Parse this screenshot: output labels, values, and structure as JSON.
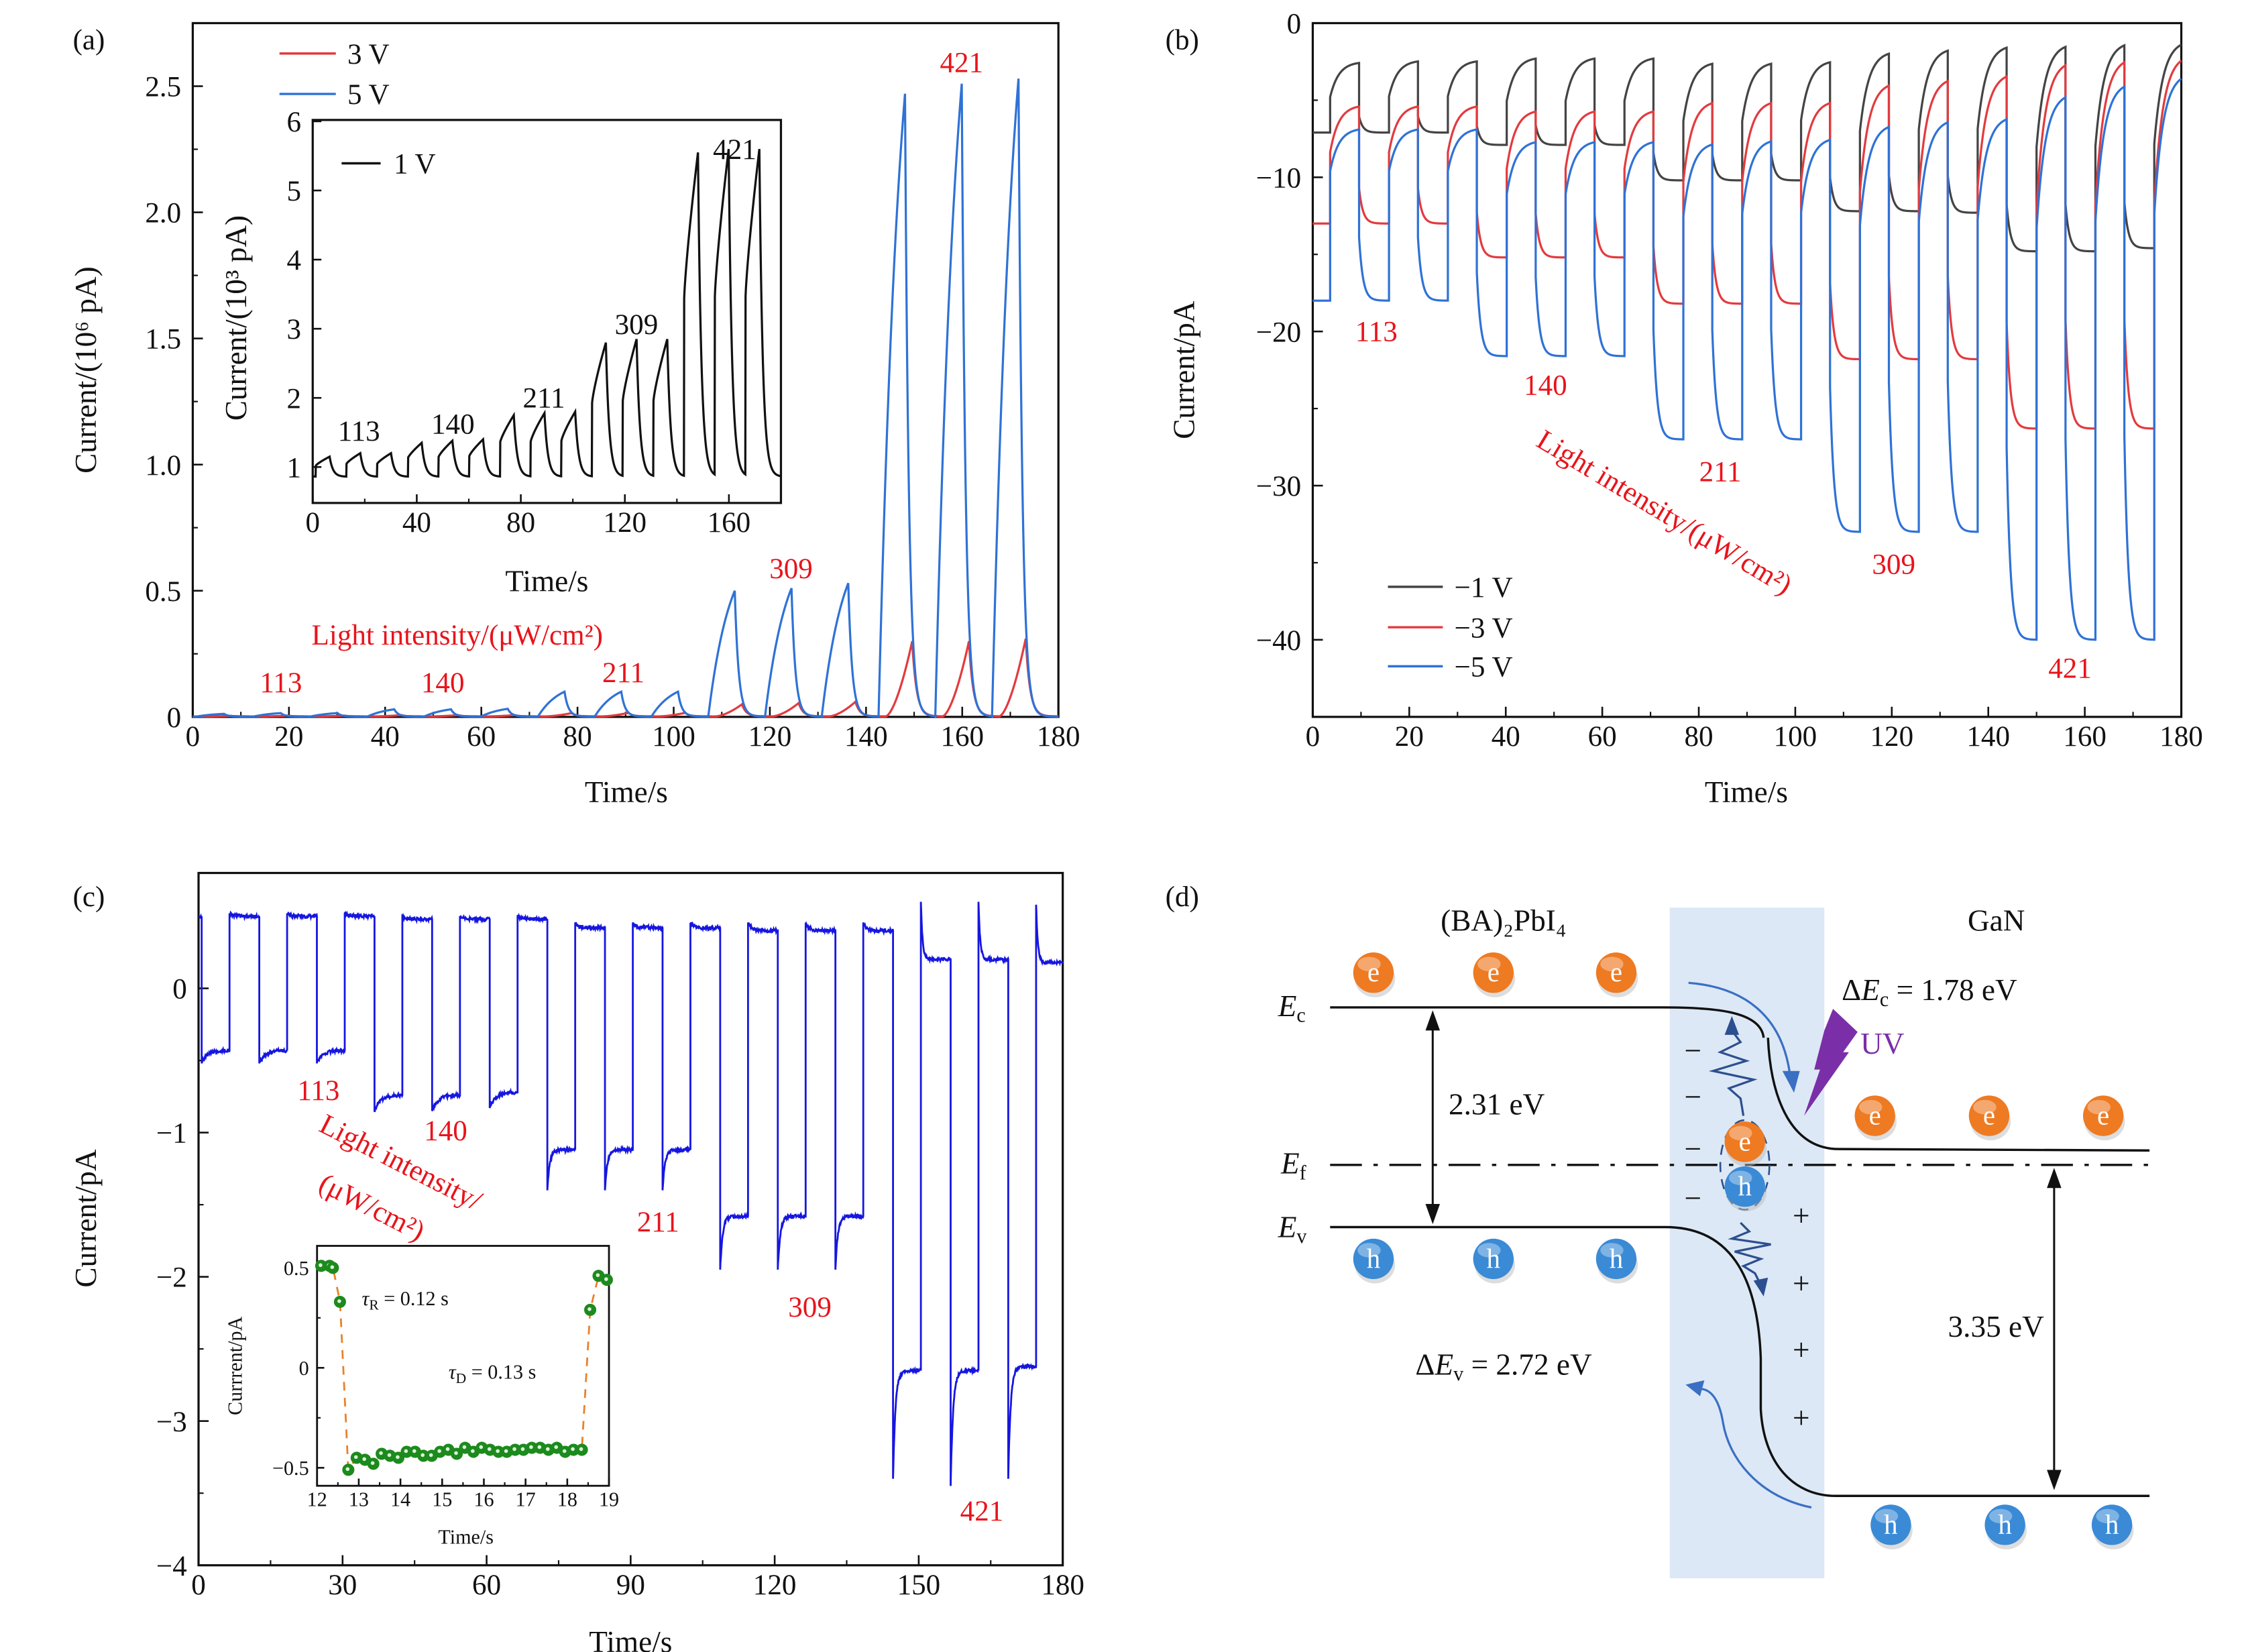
{
  "figure_labels": {
    "a": "(a)",
    "b": "(b)",
    "c": "(c)",
    "d": "(d)"
  },
  "chart_data": [
    {
      "panel": "a",
      "type": "line",
      "xlabel": "Time/s",
      "ylabel": "Current/(10⁶ pA)",
      "xlim": [
        0,
        180
      ],
      "ylim": [
        0,
        2.75
      ],
      "xticks": [
        0,
        20,
        40,
        60,
        80,
        100,
        120,
        140,
        160,
        180
      ],
      "xtick_labels": [
        "0",
        "20",
        "40",
        "60",
        "80",
        "100",
        "120",
        "140",
        "160",
        "180"
      ],
      "yticks": [
        0,
        0.5,
        1.0,
        1.5,
        2.0,
        2.5
      ],
      "ytick_labels": [
        "0",
        "0.5",
        "1.0",
        "1.5",
        "2.0",
        "2.5"
      ],
      "grid": false,
      "legend": "top-left",
      "light_period_s": 11.8,
      "pulse_duration_s": 5.5,
      "series": [
        {
          "name": "3 V",
          "color": "#e23b3f",
          "first_on_s": 2.5,
          "baseline": 0.002,
          "peak_values": [
            0.004,
            0.005,
            0.005,
            0.007,
            0.007,
            0.007,
            0.015,
            0.016,
            0.016,
            0.05,
            0.055,
            0.06,
            0.3,
            0.3,
            0.31
          ]
        },
        {
          "name": "5 V",
          "color": "#2f72d6",
          "first_on_s": 1.0,
          "baseline": 0.002,
          "peak_values": [
            0.012,
            0.015,
            0.015,
            0.03,
            0.03,
            0.032,
            0.1,
            0.1,
            0.1,
            0.5,
            0.51,
            0.53,
            2.47,
            2.51,
            2.53
          ]
        }
      ],
      "annotations": {
        "title": "Light intensity/(μW/cm²)",
        "levels": [
          "113",
          "140",
          "211",
          "309",
          "421"
        ]
      }
    },
    {
      "panel": "a-inset",
      "type": "line",
      "xlabel": "Time/s",
      "ylabel": "Current/(10³ pA)",
      "xlim": [
        0,
        180
      ],
      "ylim": [
        0.48,
        6.02
      ],
      "xticks": [
        0,
        40,
        80,
        120,
        160
      ],
      "xtick_labels": [
        "0",
        "40",
        "80",
        "120",
        "160"
      ],
      "yticks": [
        1,
        2,
        3,
        4,
        5,
        6
      ],
      "ytick_labels": [
        "1",
        "2",
        "3",
        "4",
        "5",
        "6"
      ],
      "legend": "top-left",
      "light_period_s": 11.8,
      "pulse_duration_s": 5.3,
      "series": [
        {
          "name": "1 V",
          "color": "#111111",
          "first_on_s": 1.2,
          "baseline": 0.86,
          "peak_values": [
            1.15,
            1.2,
            1.2,
            1.35,
            1.38,
            1.4,
            1.75,
            1.78,
            1.8,
            2.8,
            2.85,
            2.85,
            5.55,
            5.6,
            5.6
          ]
        }
      ],
      "annotations": {
        "levels": [
          "113",
          "140",
          "211",
          "309",
          "421"
        ]
      }
    },
    {
      "panel": "b",
      "type": "line",
      "xlabel": "Time/s",
      "ylabel": "Current/pA",
      "xlim": [
        0,
        180
      ],
      "ylim": [
        -45,
        0
      ],
      "xticks": [
        0,
        20,
        40,
        60,
        80,
        100,
        120,
        140,
        160,
        180
      ],
      "xtick_labels": [
        "0",
        "20",
        "40",
        "60",
        "80",
        "100",
        "120",
        "140",
        "160",
        "180"
      ],
      "yticks": [
        0,
        -10,
        -20,
        -30,
        -40
      ],
      "ytick_labels": [
        "0",
        "−10",
        "−20",
        "−30",
        "−40"
      ],
      "grid": false,
      "legend": "bottom-left",
      "light_period_s": 12.2,
      "light_off_first_s": 3.6,
      "light_on_first_s": 9.6,
      "series": [
        {
          "name": "−1 V",
          "color": "#444444",
          "dark_levels": [
            -2.5,
            -2.4,
            -2.4,
            -2.2,
            -2.2,
            -2.2,
            -2.5,
            -2.5,
            -2.4,
            -1.8,
            -1.6,
            -1.4,
            -1.3,
            -1.2,
            -1.1
          ],
          "light_levels": [
            -7.1,
            -7.1,
            -7.1,
            -7.9,
            -7.9,
            -7.9,
            -10.2,
            -10.2,
            -10.2,
            -12.2,
            -12.2,
            -12.3,
            -14.8,
            -14.8,
            -14.6
          ]
        },
        {
          "name": "−3 V",
          "color": "#e23b3f",
          "dark_levels": [
            -5.3,
            -5.3,
            -5.3,
            -5.6,
            -5.6,
            -5.6,
            -5.0,
            -5.0,
            -5.0,
            -3.8,
            -3.5,
            -3.2,
            -2.4,
            -2.2,
            -2.0
          ],
          "light_levels": [
            -13,
            -13,
            -13,
            -15.2,
            -15.2,
            -15.2,
            -18.2,
            -18.2,
            -18.2,
            -21.8,
            -21.8,
            -21.8,
            -26.3,
            -26.3,
            -26.3
          ]
        },
        {
          "name": "−5 V",
          "color": "#2f72d6",
          "dark_levels": [
            -6.8,
            -6.8,
            -6.8,
            -7.6,
            -7.6,
            -7.6,
            -7.7,
            -7.5,
            -7.4,
            -6.5,
            -6.2,
            -6.0,
            -4.5,
            -3.8,
            -3.2
          ],
          "light_levels": [
            -18,
            -18,
            -18,
            -21.6,
            -21.6,
            -21.6,
            -27,
            -27,
            -27,
            -33,
            -33,
            -33,
            -40,
            -40,
            -40
          ]
        }
      ],
      "annotations": {
        "title": "Light intensity/(μW/cm²)",
        "levels": [
          "113",
          "140",
          "211",
          "309",
          "421"
        ]
      }
    },
    {
      "panel": "c",
      "type": "line",
      "xlabel": "Time/s",
      "ylabel": "Current/pA",
      "xlim": [
        0,
        180
      ],
      "ylim": [
        -4,
        0.8
      ],
      "xticks": [
        0,
        30,
        60,
        90,
        120,
        150,
        180
      ],
      "xtick_labels": [
        "0",
        "30",
        "60",
        "90",
        "120",
        "150",
        "180"
      ],
      "yticks": [
        0,
        -1,
        -2,
        -3,
        -4
      ],
      "ytick_labels": [
        "0",
        "−1",
        "−2",
        "−3",
        "−4"
      ],
      "grid": false,
      "light_period_s": 12,
      "light_on_first_s": 0.65,
      "light_off_first_s": 6.45,
      "series": [
        {
          "color": "#1616e0",
          "light_levels_spike_settle": [
            [
              -0.52,
              -0.43
            ],
            [
              -0.52,
              -0.43
            ],
            [
              -0.52,
              -0.43
            ],
            [
              -0.85,
              -0.74
            ],
            [
              -0.85,
              -0.74
            ],
            [
              -0.83,
              -0.72
            ],
            [
              -1.4,
              -1.12
            ],
            [
              -1.4,
              -1.12
            ],
            [
              -1.4,
              -1.12
            ],
            [
              -1.95,
              -1.58
            ],
            [
              -1.95,
              -1.58
            ],
            [
              -1.95,
              -1.58
            ],
            [
              -3.4,
              -2.65
            ],
            [
              -3.45,
              -2.65
            ],
            [
              -3.4,
              -2.62
            ]
          ],
          "dark_levels_spike_settle": [
            [
              0.52,
              0.5
            ],
            [
              0.52,
              0.5
            ],
            [
              0.52,
              0.5
            ],
            [
              0.5,
              0.48
            ],
            [
              0.5,
              0.48
            ],
            [
              0.5,
              0.48
            ],
            [
              0.45,
              0.42
            ],
            [
              0.45,
              0.42
            ],
            [
              0.45,
              0.42
            ],
            [
              0.45,
              0.4
            ],
            [
              0.45,
              0.4
            ],
            [
              0.45,
              0.4
            ],
            [
              0.6,
              0.2
            ],
            [
              0.6,
              0.2
            ],
            [
              0.58,
              0.18
            ]
          ]
        }
      ],
      "annotations": {
        "title_line1": "Light intensity/",
        "title_line2": "(μW/cm²)",
        "levels": [
          "113",
          "140",
          "211",
          "309",
          "421"
        ]
      }
    },
    {
      "panel": "c-inset",
      "type": "scatter",
      "xlabel": "Time/s",
      "ylabel": "Currrent/pA",
      "xlim": [
        12,
        19
      ],
      "ylim": [
        -0.59,
        0.61
      ],
      "xticks": [
        12,
        13,
        14,
        15,
        16,
        17,
        18,
        19
      ],
      "xtick_labels": [
        "12",
        "13",
        "14",
        "15",
        "16",
        "17",
        "18",
        "19"
      ],
      "yticks": [
        0.5,
        0,
        -0.5
      ],
      "ytick_labels": [
        "0.5",
        "0",
        "−0.5"
      ],
      "marker_color": "#1d8a1d",
      "line_color": "#e8822a",
      "points": [
        [
          12.1,
          0.51
        ],
        [
          12.3,
          0.51
        ],
        [
          12.38,
          0.5
        ],
        [
          12.55,
          0.33
        ],
        [
          12.75,
          -0.51
        ],
        [
          12.95,
          -0.45
        ],
        [
          13.15,
          -0.46
        ],
        [
          13.35,
          -0.48
        ],
        [
          13.55,
          -0.43
        ],
        [
          13.75,
          -0.44
        ],
        [
          13.95,
          -0.45
        ],
        [
          14.15,
          -0.42
        ],
        [
          14.35,
          -0.42
        ],
        [
          14.55,
          -0.44
        ],
        [
          14.75,
          -0.44
        ],
        [
          14.95,
          -0.42
        ],
        [
          15.15,
          -0.41
        ],
        [
          15.35,
          -0.43
        ],
        [
          15.55,
          -0.4
        ],
        [
          15.75,
          -0.42
        ],
        [
          15.95,
          -0.4
        ],
        [
          16.15,
          -0.41
        ],
        [
          16.35,
          -0.42
        ],
        [
          16.55,
          -0.42
        ],
        [
          16.75,
          -0.41
        ],
        [
          16.95,
          -0.41
        ],
        [
          17.15,
          -0.4
        ],
        [
          17.35,
          -0.4
        ],
        [
          17.55,
          -0.41
        ],
        [
          17.75,
          -0.4
        ],
        [
          17.95,
          -0.42
        ],
        [
          18.15,
          -0.41
        ],
        [
          18.35,
          -0.41
        ],
        [
          18.55,
          0.29
        ],
        [
          18.75,
          0.46
        ],
        [
          18.95,
          0.44
        ]
      ],
      "annotations": {
        "tau_r": {
          "symbol": "τ",
          "sub": "R",
          "value": " = 0.12 s"
        },
        "tau_d": {
          "symbol": "τ",
          "sub": "D",
          "value": " = 0.13 s"
        }
      }
    }
  ],
  "diagram": {
    "left_material": "(BA)₂PbI₄",
    "right_material": "GaN",
    "Ec": {
      "symbol": "E",
      "sub": "c"
    },
    "Ef": {
      "symbol": "E",
      "sub": "f"
    },
    "Ev": {
      "symbol": "E",
      "sub": "v"
    },
    "gap_left": "2.31 eV",
    "gap_right": "3.35 eV",
    "delta_Ec": {
      "prefix": "Δ",
      "symbol": "E",
      "sub": "c",
      "value": " = 1.78 eV"
    },
    "delta_Ev": {
      "prefix": "Δ",
      "symbol": "E",
      "sub": "v",
      "value": " = 2.72 eV"
    },
    "uv": "UV",
    "electron": "e",
    "hole": "h",
    "minus": "−",
    "plus": "+",
    "colors": {
      "depletion": "#dce8f5",
      "electron": "#ee7a22",
      "hole": "#3a8ad6",
      "uv": "#7a2fa8",
      "arrow": "#3a6fc4"
    }
  }
}
